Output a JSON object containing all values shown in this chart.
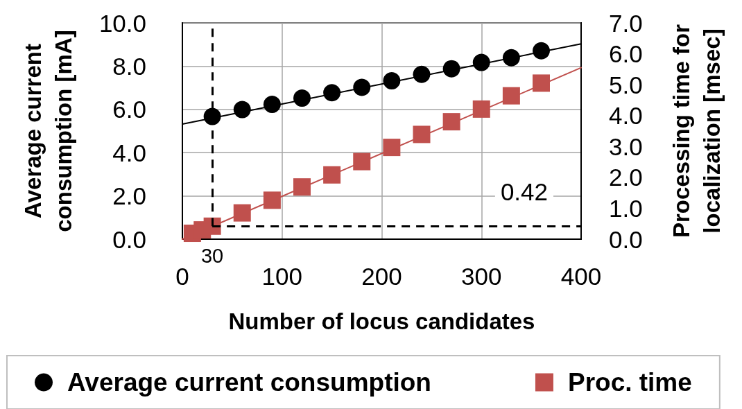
{
  "chart_data": {
    "type": "scatter",
    "xlabel": "Number of locus candidates",
    "ylabel": "Average current consumption [mA]",
    "y2label": "Processing time for localization [msec]",
    "xlim": [
      0,
      400
    ],
    "xticks": [
      0,
      100,
      200,
      300,
      400
    ],
    "ylim": [
      0,
      10
    ],
    "yticks": [
      {
        "value": 0,
        "label": "0.0"
      },
      {
        "value": 2,
        "label": "2.0"
      },
      {
        "value": 4,
        "label": "4.0"
      },
      {
        "value": 6,
        "label": "6.0"
      },
      {
        "value": 8,
        "label": "8.0"
      },
      {
        "value": 10,
        "label": "10.0"
      }
    ],
    "y2lim": [
      0,
      7
    ],
    "y2ticks": [
      {
        "value": 0,
        "label": "0.0"
      },
      {
        "value": 1,
        "label": "1.0"
      },
      {
        "value": 2,
        "label": "2.0"
      },
      {
        "value": 3,
        "label": "3.0"
      },
      {
        "value": 4,
        "label": "4.0"
      },
      {
        "value": 5,
        "label": "5.0"
      },
      {
        "value": 6,
        "label": "6.0"
      },
      {
        "value": 7,
        "label": "7.0"
      }
    ],
    "grid": true,
    "legend": "bottom",
    "series": [
      {
        "name": "Average current consumption",
        "color": "#000000",
        "marker": "circle",
        "x": [
          30,
          60,
          90,
          120,
          150,
          180,
          210,
          240,
          270,
          300,
          330,
          360
        ],
        "values": [
          5.67,
          5.99,
          6.23,
          6.52,
          6.77,
          7.02,
          7.32,
          7.62,
          7.88,
          8.17,
          8.39,
          8.71
        ]
      },
      {
        "name": "Proc. time",
        "color": "#c0504d",
        "marker": "square",
        "axis": "y2",
        "x": [
          10,
          20,
          30,
          60,
          90,
          120,
          150,
          180,
          210,
          240,
          270,
          300,
          330,
          360
        ],
        "values": [
          0.19,
          0.3,
          0.42,
          0.85,
          1.26,
          1.69,
          2.08,
          2.51,
          2.97,
          3.39,
          3.8,
          4.21,
          4.64,
          5.05
        ]
      },
      {
        "type": "line",
        "color": "#000000",
        "marker": "none",
        "x": [
          0,
          400
        ],
        "values": [
          5.32,
          9.03
        ]
      },
      {
        "type": "line",
        "color": "#c0504d",
        "marker": "none",
        "axis": "y2",
        "x": [
          0,
          400
        ],
        "values": [
          0.0,
          5.55
        ]
      }
    ],
    "ref_lines": [
      {
        "axis": "x",
        "value": 30,
        "label": "30",
        "color": "#000000",
        "line_style": "dashed"
      },
      {
        "axis": "y2",
        "value": 0.42,
        "label": "0.42",
        "color": "#000000",
        "line_style": "dashed"
      }
    ]
  }
}
